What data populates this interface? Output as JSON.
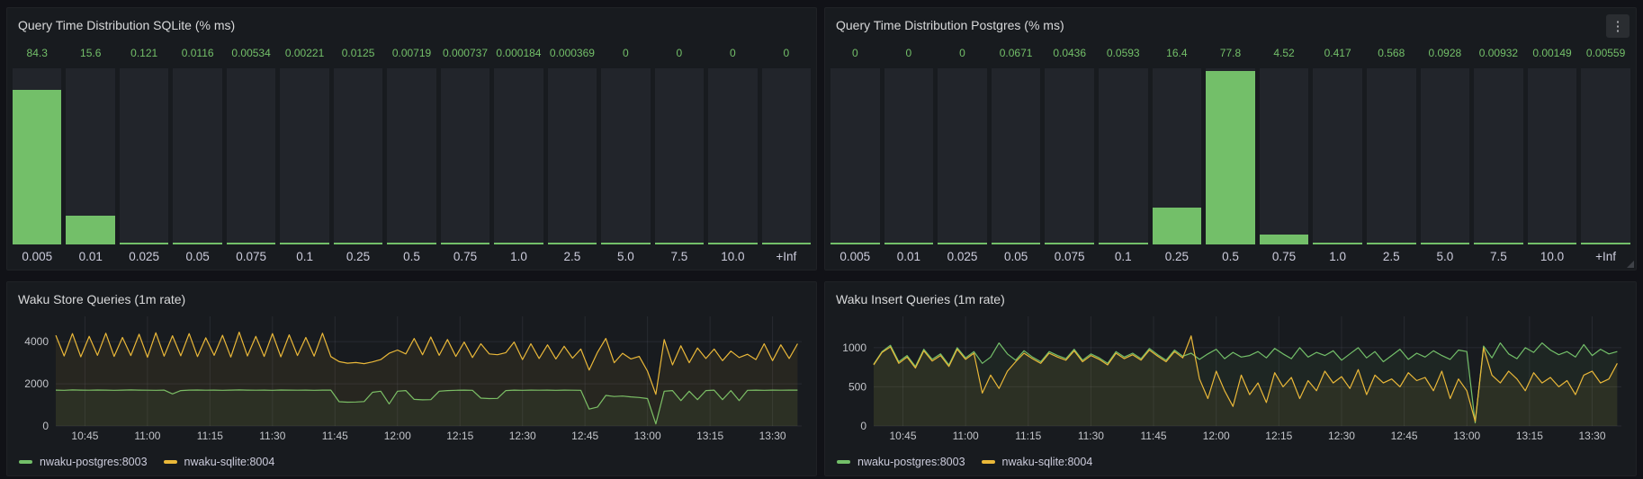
{
  "colors": {
    "green": "#73BF69",
    "yellow": "#EAB839",
    "panel_bg": "#181B1F",
    "page_bg": "#111217",
    "track_bg": "#22252B",
    "title_text": "#D8D9DA",
    "axis_text": "#C2C4C9",
    "grid": "rgba(204,204,220,0.09)"
  },
  "icons": {
    "panel_menu": "kebab-vertical",
    "panel_menu_glyph": "⋮",
    "resize_handle": "corner-resize"
  },
  "chart_data": [
    {
      "id": "sqlite-histogram",
      "type": "bar",
      "title": "Query Time Distribution SQLite (% ms)",
      "categories": [
        "0.005",
        "0.01",
        "0.025",
        "0.05",
        "0.075",
        "0.1",
        "0.25",
        "0.5",
        "0.75",
        "1.0",
        "2.5",
        "5.0",
        "7.5",
        "10.0",
        "+Inf"
      ],
      "values": [
        84.3,
        15.6,
        0.121,
        0.0116,
        0.00534,
        0.00221,
        0.0125,
        0.00719,
        0.000737,
        0.000184,
        0.000369,
        0,
        0,
        0,
        0
      ],
      "value_labels": [
        "84.3",
        "15.6",
        "0.121",
        "0.0116",
        "0.00534",
        "0.00221",
        "0.0125",
        "0.00719",
        "0.000737",
        "0.000184",
        "0.000369",
        "0",
        "0",
        "0",
        "0"
      ],
      "ylim": [
        0,
        96
      ],
      "bar_color": "#73BF69",
      "grid": false,
      "legend_position": "none"
    },
    {
      "id": "postgres-histogram",
      "type": "bar",
      "title": "Query Time Distribution Postgres (% ms)",
      "categories": [
        "0.005",
        "0.01",
        "0.025",
        "0.05",
        "0.075",
        "0.1",
        "0.25",
        "0.5",
        "0.75",
        "1.0",
        "2.5",
        "5.0",
        "7.5",
        "10.0",
        "+Inf"
      ],
      "values": [
        0,
        0,
        0,
        0.0671,
        0.0436,
        0.0593,
        16.4,
        77.8,
        4.52,
        0.417,
        0.568,
        0.0928,
        0.00932,
        0.00149,
        0.00559
      ],
      "value_labels": [
        "0",
        "0",
        "0",
        "0.0671",
        "0.0436",
        "0.0593",
        "16.4",
        "77.8",
        "4.52",
        "0.417",
        "0.568",
        "0.0928",
        "0.00932",
        "0.00149",
        "0.00559"
      ],
      "ylim": [
        0,
        79
      ],
      "bar_color": "#73BF69",
      "grid": false,
      "legend_position": "none"
    },
    {
      "id": "waku-store-queries",
      "type": "line",
      "title": "Waku Store Queries (1m rate)",
      "xlim_minutes": [
        638,
        817
      ],
      "x_start_minute": 638,
      "x_step_minutes": 2,
      "ylim": [
        0,
        5200
      ],
      "grid": true,
      "legend_position": "bottom",
      "y_ticks": [
        {
          "v": 0,
          "label": "0"
        },
        {
          "v": 2000,
          "label": "2000"
        },
        {
          "v": 4000,
          "label": "4000"
        }
      ],
      "x_ticks": [
        {
          "t": 645,
          "label": "10:45"
        },
        {
          "t": 660,
          "label": "11:00"
        },
        {
          "t": 675,
          "label": "11:15"
        },
        {
          "t": 690,
          "label": "11:30"
        },
        {
          "t": 705,
          "label": "11:45"
        },
        {
          "t": 720,
          "label": "12:00"
        },
        {
          "t": 735,
          "label": "12:15"
        },
        {
          "t": 750,
          "label": "12:30"
        },
        {
          "t": 765,
          "label": "12:45"
        },
        {
          "t": 780,
          "label": "13:00"
        },
        {
          "t": 795,
          "label": "13:15"
        },
        {
          "t": 810,
          "label": "13:30"
        }
      ],
      "series": [
        {
          "name": "nwaku-postgres:8003",
          "color": "#73BF69",
          "values": [
            1700,
            1690,
            1710,
            1700,
            1695,
            1705,
            1700,
            1690,
            1700,
            1710,
            1700,
            1695,
            1690,
            1700,
            1520,
            1680,
            1700,
            1705,
            1695,
            1700,
            1690,
            1700,
            1710,
            1700,
            1695,
            1700,
            1690,
            1705,
            1700,
            1695,
            1700,
            1690,
            1700,
            1700,
            1150,
            1130,
            1140,
            1160,
            1600,
            1650,
            1050,
            1650,
            1680,
            1260,
            1240,
            1250,
            1650,
            1680,
            1690,
            1700,
            1690,
            1320,
            1300,
            1310,
            1680,
            1700,
            1690,
            1700,
            1695,
            1700,
            1690,
            1700,
            1695,
            1690,
            800,
            900,
            1450,
            1400,
            1420,
            1380,
            1350,
            1300,
            100,
            1650,
            1680,
            1200,
            1650,
            1250,
            1680,
            1700,
            1250,
            1680,
            1200,
            1690,
            1700,
            1690,
            1700,
            1695,
            1700,
            1700
          ]
        },
        {
          "name": "nwaku-sqlite:8004",
          "color": "#EAB839",
          "values": [
            4300,
            3320,
            4380,
            3280,
            4250,
            3350,
            4400,
            3300,
            4200,
            3340,
            4350,
            3260,
            4420,
            3310,
            4280,
            3330,
            4380,
            3290,
            4180,
            3350,
            4300,
            3270,
            4450,
            3320,
            4250,
            3300,
            4380,
            3280,
            4320,
            3340,
            4200,
            3310,
            4400,
            3290,
            3050,
            2980,
            3010,
            2960,
            3040,
            3150,
            3450,
            3600,
            3420,
            4150,
            3380,
            4220,
            3350,
            4100,
            3300,
            3980,
            3250,
            3900,
            3420,
            3380,
            3480,
            3980,
            3150,
            3900,
            3200,
            3850,
            3180,
            3780,
            3220,
            3650,
            2650,
            3500,
            4150,
            3000,
            3450,
            3180,
            3300,
            2600,
            1500,
            4100,
            2900,
            3800,
            3000,
            3700,
            3200,
            3650,
            3100,
            3550,
            3250,
            3400,
            3150,
            3900,
            3100,
            3850,
            3200,
            3900
          ]
        }
      ]
    },
    {
      "id": "waku-insert-queries",
      "type": "line",
      "title": "Waku Insert Queries (1m rate)",
      "xlim_minutes": [
        638,
        817
      ],
      "x_start_minute": 638,
      "x_step_minutes": 2,
      "ylim": [
        0,
        1400
      ],
      "grid": true,
      "legend_position": "bottom",
      "y_ticks": [
        {
          "v": 0,
          "label": "0"
        },
        {
          "v": 500,
          "label": "500"
        },
        {
          "v": 1000,
          "label": "1000"
        }
      ],
      "x_ticks": [
        {
          "t": 645,
          "label": "10:45"
        },
        {
          "t": 660,
          "label": "11:00"
        },
        {
          "t": 675,
          "label": "11:15"
        },
        {
          "t": 690,
          "label": "11:30"
        },
        {
          "t": 705,
          "label": "11:45"
        },
        {
          "t": 720,
          "label": "12:00"
        },
        {
          "t": 735,
          "label": "12:15"
        },
        {
          "t": 750,
          "label": "12:30"
        },
        {
          "t": 765,
          "label": "12:45"
        },
        {
          "t": 780,
          "label": "13:00"
        },
        {
          "t": 795,
          "label": "13:15"
        },
        {
          "t": 810,
          "label": "13:30"
        }
      ],
      "series": [
        {
          "name": "nwaku-postgres:8003",
          "color": "#73BF69",
          "values": [
            790,
            950,
            1030,
            820,
            900,
            760,
            980,
            850,
            920,
            780,
            1000,
            870,
            950,
            800,
            880,
            1060,
            920,
            840,
            960,
            880,
            820,
            950,
            900,
            860,
            980,
            840,
            920,
            870,
            800,
            950,
            880,
            930,
            860,
            990,
            910,
            840,
            970,
            890,
            930,
            850,
            920,
            980,
            860,
            940,
            880,
            900,
            950,
            870,
            990,
            920,
            860,
            1000,
            880,
            940,
            900,
            960,
            840,
            920,
            1000,
            870,
            950,
            820,
            900,
            980,
            850,
            930,
            880,
            960,
            900,
            850,
            970,
            950,
            40,
            1020,
            870,
            1060,
            920,
            860,
            1000,
            940,
            1060,
            970,
            910,
            950,
            880,
            1040,
            900,
            980,
            920,
            950
          ]
        },
        {
          "name": "nwaku-sqlite:8004",
          "color": "#EAB839",
          "values": [
            780,
            940,
            1010,
            800,
            880,
            740,
            960,
            830,
            900,
            760,
            980,
            850,
            930,
            420,
            650,
            480,
            700,
            820,
            930,
            860,
            800,
            930,
            880,
            840,
            960,
            820,
            900,
            850,
            780,
            930,
            860,
            910,
            840,
            970,
            890,
            820,
            950,
            870,
            1150,
            600,
            350,
            700,
            450,
            250,
            650,
            400,
            550,
            300,
            680,
            500,
            620,
            350,
            580,
            450,
            700,
            550,
            630,
            480,
            720,
            400,
            650,
            550,
            600,
            500,
            680,
            580,
            620,
            450,
            700,
            350,
            600,
            450,
            60,
            1000,
            650,
            550,
            700,
            600,
            450,
            680,
            550,
            620,
            500,
            580,
            400,
            650,
            700,
            550,
            600,
            800
          ]
        }
      ]
    }
  ]
}
